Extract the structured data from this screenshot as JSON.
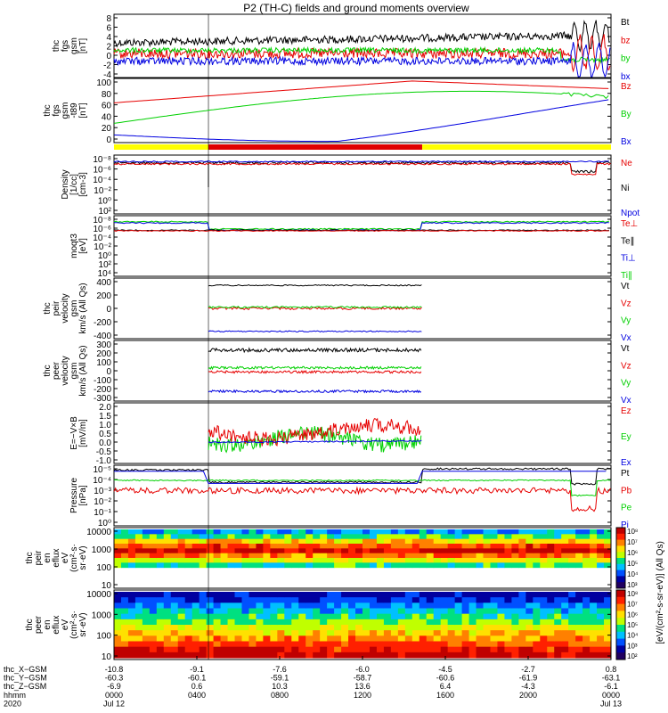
{
  "title": "P2 (TH-C) fields and ground moments overview",
  "colors": {
    "black": "#000000",
    "red": "#e60000",
    "green": "#00d000",
    "blue": "#0000e0",
    "yellow": "#ffff00",
    "bar_red": "#e00000"
  },
  "chart_data": [
    {
      "type": "line",
      "id": "fgs",
      "ylabel": [
        "thc",
        "fgs",
        "gsm",
        "[nT]"
      ],
      "yticks": [
        "8",
        "6",
        "4",
        "2",
        "0",
        "-2",
        "-4"
      ],
      "ylim": [
        -5,
        9
      ],
      "series": [
        {
          "name": "Bt",
          "color": "black"
        },
        {
          "name": "bz",
          "color": "red"
        },
        {
          "name": "by",
          "color": "green"
        },
        {
          "name": "bx",
          "color": "blue"
        }
      ]
    },
    {
      "type": "line",
      "id": "fgs-t89",
      "ylabel": [
        "thc",
        "fgs",
        "gsm",
        "-t89",
        "[nT]"
      ],
      "yticks": [
        "100",
        "80",
        "60",
        "40",
        "20",
        "0"
      ],
      "ylim": [
        -10,
        100
      ],
      "series": [
        {
          "name": "Bz",
          "color": "red"
        },
        {
          "name": "By",
          "color": "green"
        },
        {
          "name": "Bx",
          "color": "blue"
        }
      ]
    },
    {
      "type": "line",
      "id": "density",
      "ylabel": [
        "Density",
        "[1/cc]",
        "[cm-3]"
      ],
      "yticks": [
        "10⁻⁸",
        "10⁻⁶",
        "10⁻⁴",
        "10⁻²",
        "10⁰",
        "10²"
      ],
      "ylim_log10": [
        -9,
        3
      ],
      "series": [
        {
          "name": "Ne",
          "color": "red"
        },
        {
          "name": "Ni",
          "color": "black"
        },
        {
          "name": "Npot",
          "color": "blue"
        }
      ]
    },
    {
      "type": "line",
      "id": "temperature",
      "ylabel": [
        "moqt3",
        "[eV]"
      ],
      "yticks": [
        "10⁻⁸",
        "10⁻⁶",
        "10⁻⁴",
        "10⁻²",
        "10⁰",
        "10²",
        "10⁴"
      ],
      "ylim_log10": [
        -9,
        5
      ],
      "series": [
        {
          "name": "Te⊥",
          "color": "red"
        },
        {
          "name": "Te∥",
          "color": "black"
        },
        {
          "name": "Ti⊥",
          "color": "blue"
        },
        {
          "name": "Ti∥",
          "color": "green"
        }
      ]
    },
    {
      "type": "line",
      "id": "peir-velocity",
      "ylabel": [
        "thc",
        "peir",
        "velocity",
        "gsm",
        "km/s (All Qs)"
      ],
      "yticks": [
        "400",
        "200",
        "0",
        "-200",
        "-400"
      ],
      "ylim": [
        -450,
        420
      ],
      "series": [
        {
          "name": "Vt",
          "color": "black"
        },
        {
          "name": "Vz",
          "color": "red"
        },
        {
          "name": "Vy",
          "color": "green"
        },
        {
          "name": "Vx",
          "color": "blue"
        }
      ]
    },
    {
      "type": "line",
      "id": "peer-velocity",
      "ylabel": [
        "thc",
        "peer",
        "velocity",
        "gsm",
        "km/s (All Qs)"
      ],
      "yticks": [
        "300",
        "200",
        "100",
        "0",
        "-100",
        "-200",
        "-300"
      ],
      "ylim": [
        -300,
        300
      ],
      "series": [
        {
          "name": "Vt",
          "color": "black"
        },
        {
          "name": "Vz",
          "color": "red"
        },
        {
          "name": "Vy",
          "color": "green"
        },
        {
          "name": "Vx",
          "color": "blue"
        }
      ]
    },
    {
      "type": "line",
      "id": "efield",
      "ylabel": [
        "E=−V×B",
        "[mV/m]"
      ],
      "yticks": [
        "2.0",
        "1.5",
        "1.0",
        "0.5",
        "0.0",
        "-0.5",
        "-1.0"
      ],
      "ylim": [
        -1.1,
        2.1
      ],
      "series": [
        {
          "name": "Ez",
          "color": "red"
        },
        {
          "name": "Ey",
          "color": "green"
        },
        {
          "name": "Ex",
          "color": "blue"
        }
      ]
    },
    {
      "type": "line",
      "id": "pressure",
      "ylabel": [
        "Pressure",
        "[nPa]"
      ],
      "yticks": [
        "10⁻⁵",
        "10⁻⁴",
        "10⁻³",
        "10⁻²",
        "10⁻¹",
        "10⁰"
      ],
      "ylim_log10": [
        -5.5,
        0.3
      ],
      "series": [
        {
          "name": "Pt",
          "color": "black"
        },
        {
          "name": "Pb",
          "color": "red"
        },
        {
          "name": "Pe",
          "color": "green"
        },
        {
          "name": "Pi",
          "color": "blue"
        }
      ]
    },
    {
      "type": "heatmap",
      "id": "peir-spectrogram",
      "ylabel": [
        "thc",
        "peir",
        "en",
        "eflux",
        "eV",
        "(cm²·s·",
        "sr·eV)"
      ],
      "yticks": [
        "10000",
        "1000",
        "100",
        "10"
      ]
    },
    {
      "type": "heatmap",
      "id": "peer-spectrogram",
      "ylabel": [
        "thc",
        "peer",
        "en",
        "eflux",
        "eV",
        "(cm²·s·",
        "sr·eV)"
      ],
      "yticks": [
        "10000",
        "1000",
        "100",
        "10"
      ]
    }
  ],
  "colorbar": {
    "label": "[eV/(cm²-s-sr-eV)] (All Qs)",
    "top_ticks": [
      "10⁸",
      "10⁷",
      "10⁶",
      "10⁵",
      "10⁴",
      "10³"
    ],
    "bottom_ticks": [
      "10⁸",
      "10⁷",
      "10⁶",
      "10⁵",
      "10⁴",
      "10³",
      "10²"
    ]
  },
  "xaxis": {
    "row_labels": [
      "thc_X−GSM",
      "thc_Y−GSM",
      "thc_Z−GSM",
      "hhmm",
      "2020"
    ],
    "columns": [
      {
        "x": "-10.8",
        "y": "-60.3",
        "z": "-6.9",
        "hhmm": "0000",
        "date": "Jul 12"
      },
      {
        "x": "-9.1",
        "y": "-60.1",
        "z": "0.6",
        "hhmm": "0400",
        "date": ""
      },
      {
        "x": "-7.6",
        "y": "-59.1",
        "z": "10.3",
        "hhmm": "0800",
        "date": ""
      },
      {
        "x": "-6.0",
        "y": "-58.7",
        "z": "13.6",
        "hhmm": "1200",
        "date": ""
      },
      {
        "x": "-4.5",
        "y": "-60.6",
        "z": "6.4",
        "hhmm": "1600",
        "date": ""
      },
      {
        "x": "-2.7",
        "y": "-61.9",
        "z": "-4.3",
        "hhmm": "2000",
        "date": ""
      },
      {
        "x": "0.8",
        "y": "-63.1",
        "z": "-6.1",
        "hhmm": "0000",
        "date": "Jul 13"
      }
    ]
  }
}
